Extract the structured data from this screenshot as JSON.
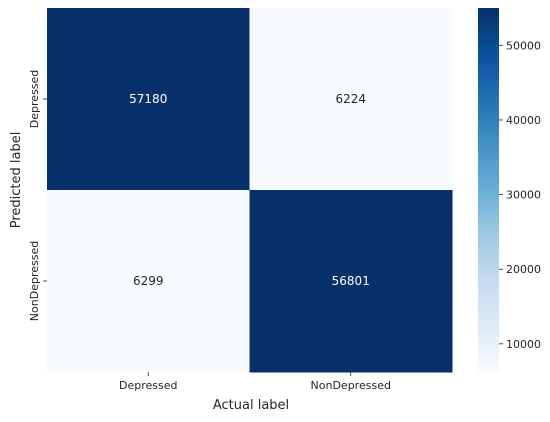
{
  "chart_data": {
    "type": "heatmap",
    "title": "",
    "xlabel": "Actual label",
    "ylabel": "Predicted label",
    "x_categories": [
      "Depressed",
      "NonDepressed"
    ],
    "y_categories": [
      "Depressed",
      "NonDepressed"
    ],
    "values": [
      [
        57180,
        6224
      ],
      [
        6299,
        56801
      ]
    ],
    "colormap": "Blues",
    "colorbar": {
      "min": 6224,
      "max": 55000,
      "ticks": [
        10000,
        20000,
        30000,
        40000,
        50000
      ],
      "tick_labels": [
        "10000",
        "20000",
        "30000",
        "40000",
        "50000"
      ]
    },
    "colors": {
      "low": "#f7fbff",
      "high": "#08306b",
      "text_dark": "#262626",
      "text_light": "#ffffff"
    }
  }
}
